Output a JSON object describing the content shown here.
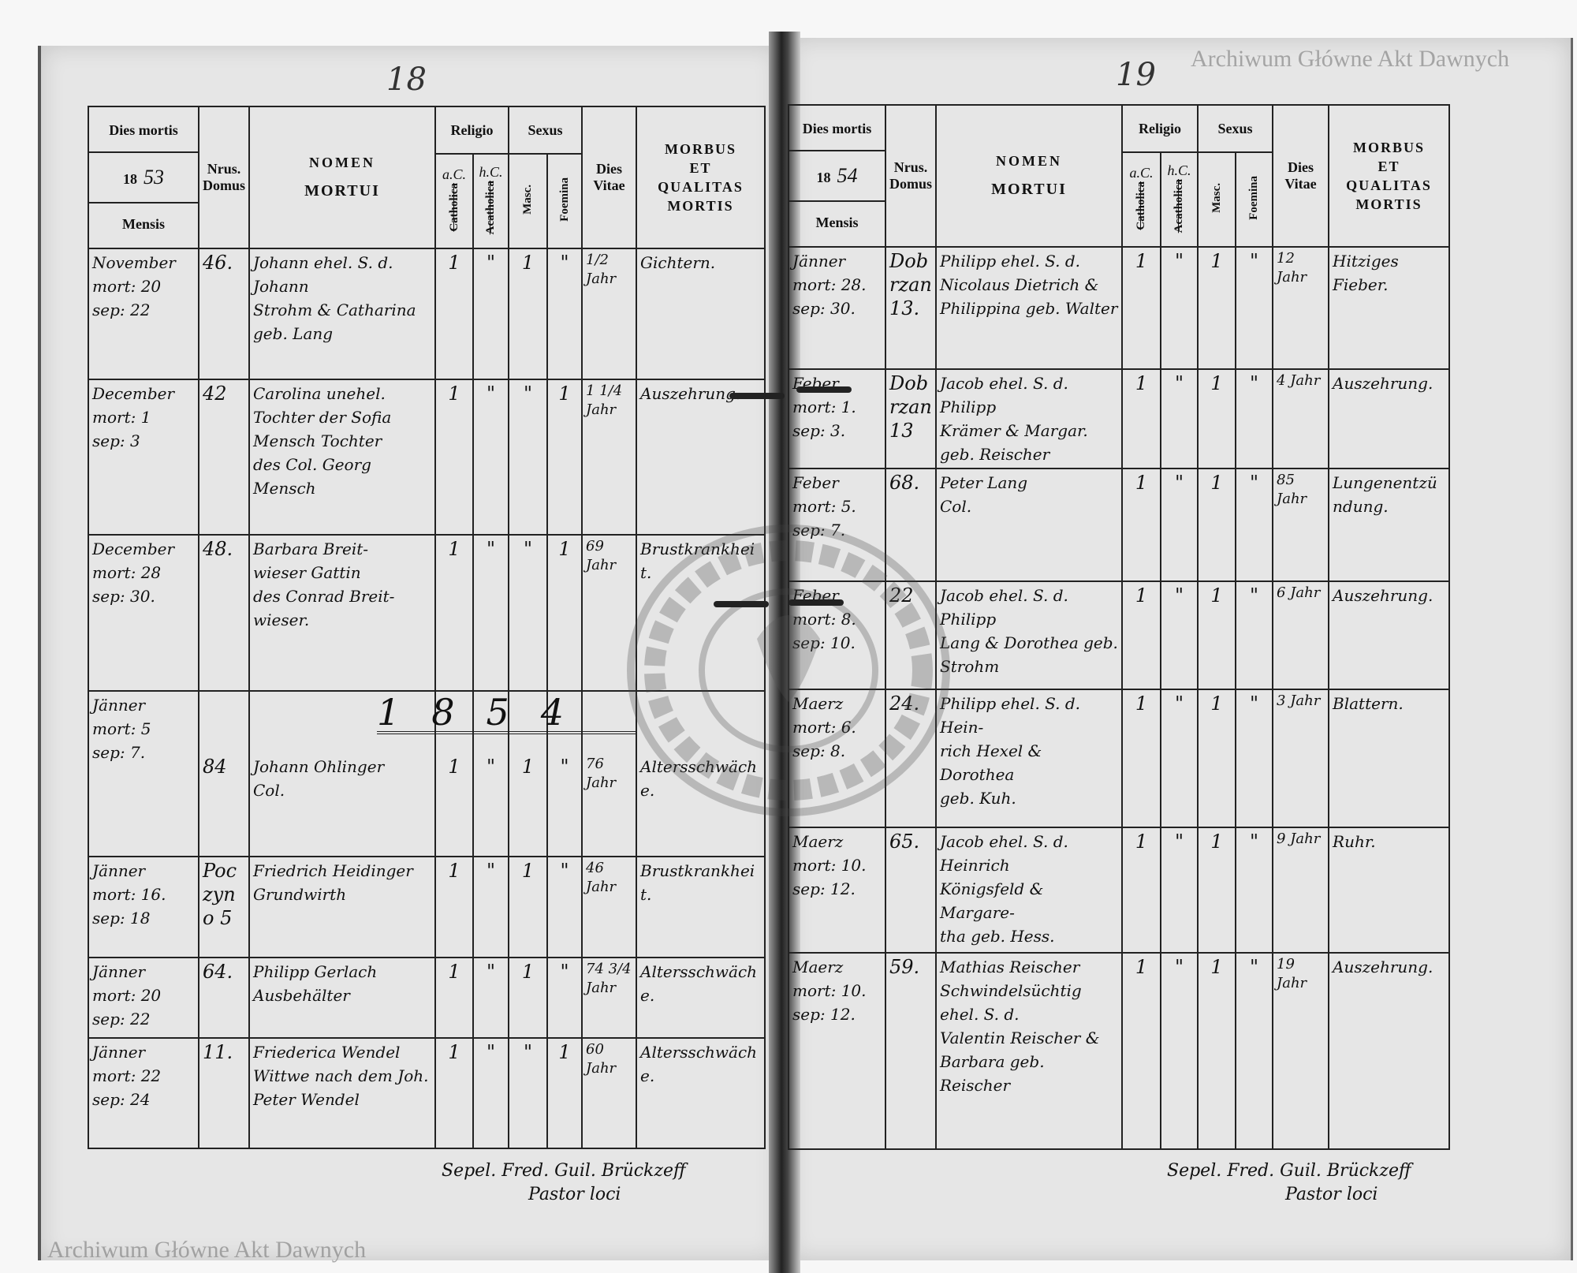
{
  "left_page": {
    "page_number": "18",
    "header": {
      "dies_mortis": "Dies mortis",
      "year_prefix": "18",
      "year_suffix": "53",
      "mensis": "Mensis",
      "nrus_domus": "Nrus. Domus",
      "nomen": "NOMEN",
      "mortui": "MORTUI",
      "religio": "Religio",
      "catholica_hw": "a.C.",
      "catholica": "Catholica",
      "acatholica_hw": "h.C.",
      "acatholica": "Acatholica",
      "sexus": "Sexus",
      "masc": "Masc.",
      "foemina": "Foemina",
      "dies_vitae": "Dies Vitae",
      "morbus": "MORBUS",
      "et": "ET",
      "qualitas": "QUALITAS",
      "mortis": "MORTIS"
    },
    "year_mark": "1854",
    "rows": [
      {
        "month": "November",
        "mort": "mort: 20",
        "sep": "sep: 22",
        "nrus": "46.",
        "name": [
          "Johann ehel. S. d. Johann",
          "Strohm & Catharina",
          "geb. Lang"
        ],
        "ac": "1",
        "hc": "\"",
        "masc": "1",
        "foem": "\"",
        "vitae": "1/2 Jahr",
        "morbus": "Gichtern."
      },
      {
        "month": "December",
        "mort": "mort: 1",
        "sep": "sep: 3",
        "nrus": "42",
        "name": [
          "Carolina unehel.",
          "Tochter der Sofia",
          "Mensch Tochter",
          "des Col. Georg Mensch"
        ],
        "ac": "1",
        "hc": "\"",
        "masc": "\"",
        "foem": "1",
        "vitae": "1 1/4 Jahr",
        "morbus": "Auszehrung."
      },
      {
        "month": "December",
        "mort": "mort: 28",
        "sep": "sep: 30.",
        "nrus": "48.",
        "name": [
          "Barbara Breit-",
          "wieser Gattin",
          "des Conrad Breit-",
          "wieser."
        ],
        "ac": "1",
        "hc": "\"",
        "masc": "\"",
        "foem": "1",
        "vitae": "69 Jahr",
        "morbus": "Brustkrankheit."
      },
      {
        "month": "Jänner",
        "mort": "mort: 5",
        "sep": "sep: 7.",
        "nrus": "84",
        "name": [
          "Johann Ohlinger",
          "Col."
        ],
        "ac": "1",
        "hc": "\"",
        "masc": "1",
        "foem": "\"",
        "vitae": "76 Jahr",
        "morbus": "Altersschwäche."
      },
      {
        "month": "Jänner",
        "mort": "mort: 16.",
        "sep": "sep: 18",
        "nrus": "Poczyno 5",
        "name": [
          "Friedrich Heidinger",
          "Grundwirth"
        ],
        "ac": "1",
        "hc": "\"",
        "masc": "1",
        "foem": "\"",
        "vitae": "46 Jahr",
        "morbus": "Brustkrankheit."
      },
      {
        "month": "Jänner",
        "mort": "mort: 20",
        "sep": "sep: 22",
        "nrus": "64.",
        "name": [
          "Philipp Gerlach",
          "Ausbehälter"
        ],
        "ac": "1",
        "hc": "\"",
        "masc": "1",
        "foem": "\"",
        "vitae": "74 3/4 Jahr",
        "morbus": "Altersschwäche."
      },
      {
        "month": "Jänner",
        "mort": "mort: 22",
        "sep": "sep: 24",
        "nrus": "11.",
        "name": [
          "Friederica Wendel",
          "Wittwe nach dem Joh.",
          "Peter Wendel"
        ],
        "ac": "1",
        "hc": "\"",
        "masc": "\"",
        "foem": "1",
        "vitae": "60 Jahr",
        "morbus": "Altersschwäche."
      }
    ],
    "signature": [
      "Sepel. Fred. Guil. Brückzeff",
      "Pastor loci"
    ]
  },
  "right_page": {
    "page_number": "19",
    "header": {
      "dies_mortis": "Dies mortis",
      "year_prefix": "18",
      "year_suffix": "54",
      "mensis": "Mensis",
      "nrus_domus": "Nrus. Domus",
      "nomen": "NOMEN",
      "mortui": "MORTUI",
      "religio": "Religio",
      "catholica_hw": "a.C.",
      "catholica": "Catholica",
      "acatholica_hw": "h.C.",
      "acatholica": "Acatholica",
      "sexus": "Sexus",
      "masc": "Masc.",
      "foemina": "Foemina",
      "dies_vitae": "Dies Vitae",
      "morbus": "MORBUS",
      "et": "ET",
      "qualitas": "QUALITAS",
      "mortis": "MORTIS"
    },
    "rows": [
      {
        "month": "Jänner",
        "mort": "mort: 28.",
        "sep": "sep: 30.",
        "nrus": "Dobrzan 13.",
        "name": [
          "Philipp ehel. S. d.",
          "Nicolaus Dietrich &",
          "Philippina geb. Walter"
        ],
        "ac": "1",
        "hc": "\"",
        "masc": "1",
        "foem": "\"",
        "vitae": "12 Jahr",
        "morbus": "Hitziges Fieber."
      },
      {
        "month": "Feber",
        "mort": "mort: 1.",
        "sep": "sep: 3.",
        "nrus": "Dobrzan 13",
        "name": [
          "Jacob ehel. S. d. Philipp",
          "Krämer & Margar.",
          "geb. Reischer"
        ],
        "ac": "1",
        "hc": "\"",
        "masc": "1",
        "foem": "\"",
        "vitae": "4 Jahr",
        "morbus": "Auszehrung."
      },
      {
        "month": "Feber",
        "mort": "mort: 5.",
        "sep": "sep: 7.",
        "nrus": "68.",
        "name": [
          "Peter Lang",
          "Col."
        ],
        "ac": "1",
        "hc": "\"",
        "masc": "1",
        "foem": "\"",
        "vitae": "85 Jahr",
        "morbus": "Lungenentzündung."
      },
      {
        "month": "Feber",
        "mort": "mort: 8.",
        "sep": "sep: 10.",
        "nrus": "22",
        "name": [
          "Jacob ehel. S. d. Philipp",
          "Lang & Dorothea geb.",
          "Strohm"
        ],
        "ac": "1",
        "hc": "\"",
        "masc": "1",
        "foem": "\"",
        "vitae": "6 Jahr",
        "morbus": "Auszehrung."
      },
      {
        "month": "Maerz",
        "mort": "mort: 6.",
        "sep": "sep: 8.",
        "nrus": "24.",
        "name": [
          "Philipp ehel. S. d. Hein-",
          "rich Hexel & Dorothea",
          "geb. Kuh."
        ],
        "ac": "1",
        "hc": "\"",
        "masc": "1",
        "foem": "\"",
        "vitae": "3 Jahr",
        "morbus": "Blattern."
      },
      {
        "month": "Maerz",
        "mort": "mort: 10.",
        "sep": "sep: 12.",
        "nrus": "65.",
        "name": [
          "Jacob ehel. S. d. Heinrich",
          "Königsfeld & Margare-",
          "tha geb. Hess."
        ],
        "ac": "1",
        "hc": "\"",
        "masc": "1",
        "foem": "\"",
        "vitae": "9 Jahr",
        "morbus": "Ruhr."
      },
      {
        "month": "Maerz",
        "mort": "mort: 10.",
        "sep": "sep: 12.",
        "nrus": "59.",
        "name": [
          "Mathias Reischer",
          "Schwindelsüchtig ehel. S. d.",
          "Valentin Reischer &",
          "Barbara geb. Reischer"
        ],
        "ac": "1",
        "hc": "\"",
        "masc": "1",
        "foem": "\"",
        "vitae": "19 Jahr",
        "morbus": "Auszehrung."
      }
    ],
    "signature": [
      "Sepel. Fred. Guil. Brückzeff",
      "Pastor loci"
    ]
  },
  "watermarks": [
    "Archiwum Główne Akt Dawnych",
    "Archiwum Główne Akt Dawnych"
  ],
  "stamp_text": "ARCHIWUM GŁÓWNE AKT DAWNYCH"
}
